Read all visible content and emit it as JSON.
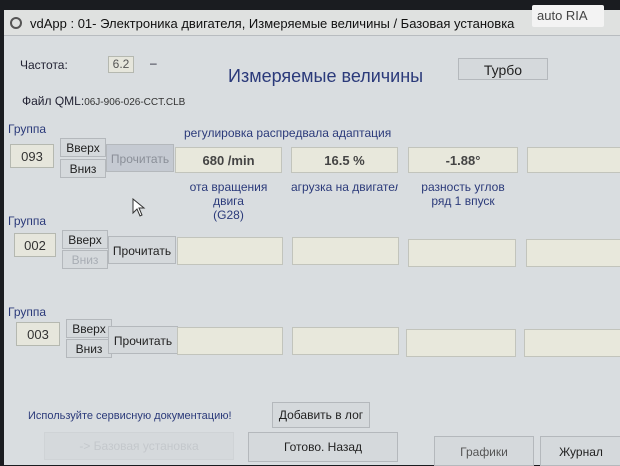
{
  "window": {
    "title": "vdApp : 01- Электроника двигателя,  Измеряемые величины / Базовая установка"
  },
  "header": {
    "freq_label": "Частота:",
    "freq_value": "6.2",
    "freq_dash": "–",
    "title": "Измеряемые величины",
    "turbo_label": "Турбо",
    "file_label": "Файл QML:",
    "file_value": "06J-906-026-CCT.CLB"
  },
  "groups": [
    {
      "label": "Группа",
      "number": "093",
      "up": "Вверх",
      "down": "Вниз",
      "read": "Прочитать",
      "title": "регулировка распредвала адаптация",
      "values": [
        "680 /min",
        "16.5 %",
        "-1.88°",
        ""
      ],
      "descs": [
        "ота вращения двига\n(G28)",
        "агрузка на двигател",
        "разность углов\nряд 1 впуск",
        ""
      ]
    },
    {
      "label": "Группа",
      "number": "002",
      "up": "Вверх",
      "down": "Вниз",
      "read": "Прочитать",
      "values": [
        "",
        "",
        "",
        ""
      ]
    },
    {
      "label": "Группа",
      "number": "003",
      "up": "Вверх",
      "down": "Вниз",
      "read": "Прочитать",
      "values": [
        "",
        "",
        "",
        ""
      ]
    }
  ],
  "footer": {
    "notice": "Используйте сервисную документацию!",
    "add_log": "Добавить в лог",
    "basic_setting": "-> Базовая установка",
    "done_back": "Готово. Назад",
    "graphs": "Графики",
    "journal": "Журнал"
  },
  "watermark": {
    "text": "auto RIA"
  }
}
